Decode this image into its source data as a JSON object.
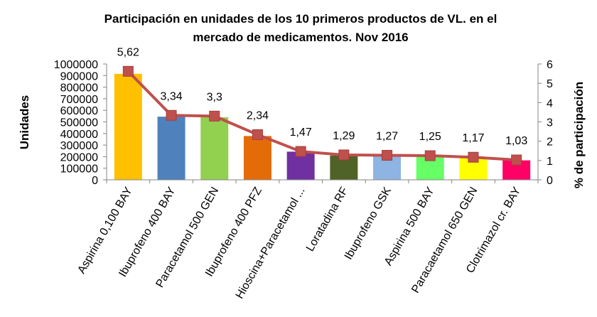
{
  "chart_data": {
    "type": "bar",
    "title_lines": [
      "Participación en unidades de los 10 primeros productos de VL. en el",
      "mercado de medicamentos. Nov 2016"
    ],
    "ylabel": "Unidades",
    "y2label": "% de participación",
    "categories": [
      "Aspirina 0,100 BAY",
      "Ibuprofeno 400 BAY",
      "Paracetamol 500 GEN",
      "Ibuprofeno 400 PFZ",
      "Hioscina+Paracetamol ...",
      "Loratadina RF",
      "Ibuprofeno  GSK",
      "Aspirina 500 BAY",
      "Paracaetamol 650 GEN",
      "Clotrimazol cr. BAY"
    ],
    "series": [
      {
        "axis": "left",
        "type": "bar",
        "values": [
          915000,
          545000,
          540000,
          378000,
          243000,
          210000,
          205000,
          202000,
          190000,
          168000
        ],
        "colors": [
          "#FFC000",
          "#4F81BD",
          "#92D050",
          "#E36C09",
          "#7030A0",
          "#4F6228",
          "#8DB4E2",
          "#66FF66",
          "#FFFF00",
          "#FF0066"
        ]
      },
      {
        "axis": "right",
        "type": "line",
        "values": [
          5.62,
          3.34,
          3.3,
          2.34,
          1.47,
          1.29,
          1.27,
          1.25,
          1.17,
          1.03
        ],
        "data_labels": [
          "5,62",
          "3,34",
          "3,3",
          "2,34",
          "1,47",
          "1,29",
          "1,27",
          "1,25",
          "1,17",
          "1,03"
        ],
        "color": "#C0504D"
      }
    ],
    "y_ticks": [
      "0",
      "100000",
      "200000",
      "300000",
      "400000",
      "500000",
      "600000",
      "700000",
      "800000",
      "900000",
      "1000000"
    ],
    "y2_ticks": [
      "0",
      "1",
      "2",
      "3",
      "4",
      "5",
      "6"
    ],
    "ylim": [
      0,
      1000000
    ],
    "y2lim": [
      0,
      6
    ],
    "grid": false,
    "legend": "none"
  }
}
